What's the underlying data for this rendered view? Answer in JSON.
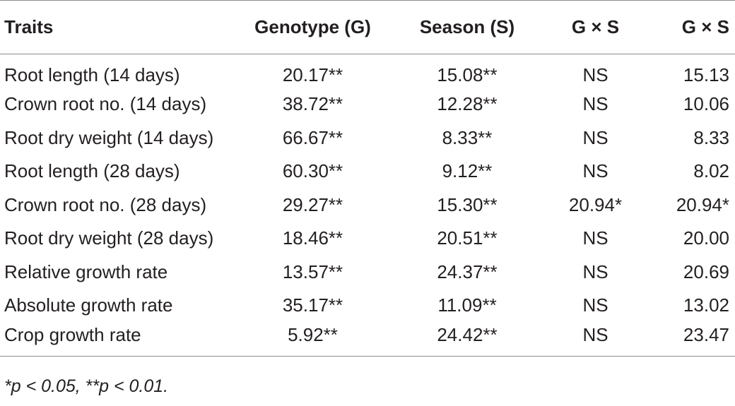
{
  "table": {
    "headers": [
      "Traits",
      "Genotype (G)",
      "Season (S)",
      "G × S",
      "G × S"
    ],
    "rows": [
      [
        "Root length (14 days)",
        "20.17**",
        "15.08**",
        "NS",
        "15.13"
      ],
      [
        "Crown root no. (14 days)",
        "38.72**",
        "12.28**",
        "NS",
        "10.06"
      ],
      [
        "Root dry weight (14 days)",
        "66.67**",
        "8.33**",
        "NS",
        "8.33"
      ],
      [
        "Root length (28 days)",
        "60.30**",
        "9.12**",
        "NS",
        "8.02"
      ],
      [
        "Crown root no. (28 days)",
        "29.27**",
        "15.30**",
        "20.94*",
        "20.94*"
      ],
      [
        "Root dry weight (28 days)",
        "18.46**",
        "20.51**",
        "NS",
        "20.00"
      ],
      [
        "Relative growth rate",
        "13.57**",
        "24.37**",
        "NS",
        "20.69"
      ],
      [
        "Absolute growth rate",
        "35.17**",
        "11.09**",
        "NS",
        "13.02"
      ],
      [
        "Crop growth rate",
        "5.92**",
        "24.42**",
        "NS",
        "23.47"
      ]
    ]
  },
  "footnote": "*p < 0.05, **p < 0.01."
}
